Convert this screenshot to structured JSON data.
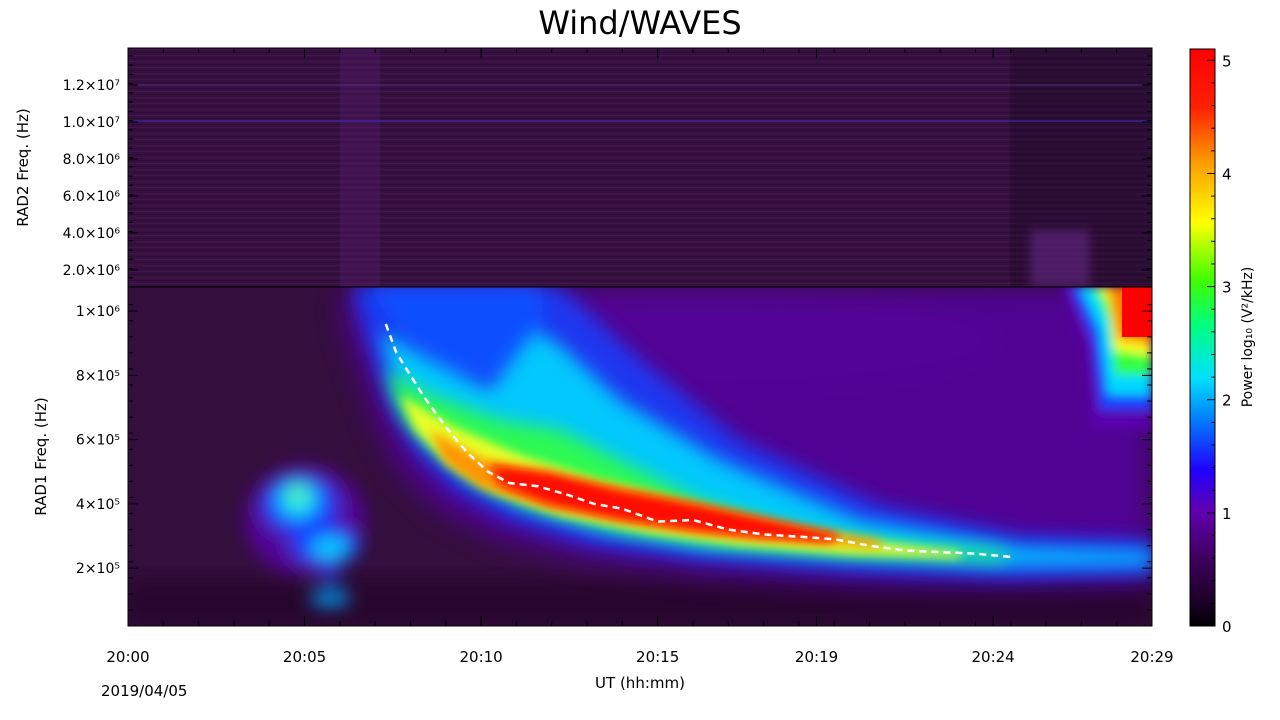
{
  "title": "Wind/WAVES",
  "date": "2019/04/05",
  "chart_data": {
    "type": "heatmap",
    "title": "Wind/WAVES",
    "xlabel": "UT (hh:mm)",
    "x_ticks": [
      "20:00",
      "20:05",
      "20:10",
      "20:15",
      "20:19",
      "20:24",
      "20:29"
    ],
    "panels": [
      {
        "name": "RAD2",
        "ylabel": "RAD2 Freq. (Hz)",
        "ylim": [
          1075000,
          14000000
        ],
        "y_ticks": [
          {
            "label": "2.0×10⁶",
            "value": 2000000
          },
          {
            "label": "4.0×10⁶",
            "value": 4000000
          },
          {
            "label": "6.0×10⁶",
            "value": 6000000
          },
          {
            "label": "8.0×10⁶",
            "value": 8000000
          },
          {
            "label": "1.0×10⁷",
            "value": 10000000
          },
          {
            "label": "1.2×10⁷",
            "value": 12000000
          }
        ]
      },
      {
        "name": "RAD1",
        "ylabel": "RAD1 Freq. (Hz)",
        "ylim": [
          20000,
          1075000
        ],
        "y_ticks": [
          {
            "label": "2×10⁵",
            "value": 200000
          },
          {
            "label": "4×10⁵",
            "value": 400000
          },
          {
            "label": "6×10⁵",
            "value": 600000
          },
          {
            "label": "8×10⁵",
            "value": 800000
          },
          {
            "label": "1×10⁶",
            "value": 1000000
          }
        ]
      }
    ],
    "colorbar": {
      "label": "Power log₁₀ (V²/kHz)",
      "range": [
        0,
        5.1
      ],
      "ticks": [
        "0",
        "1",
        "2",
        "3",
        "4",
        "5"
      ]
    },
    "trace": {
      "style": "dashed white",
      "x_minutes": [
        7.3,
        7.6,
        8.0,
        8.4,
        9.0,
        9.6,
        10.2,
        10.8,
        11.6,
        12.4,
        13.2,
        14.0,
        15.0,
        16.0,
        17.0,
        18.0,
        19.0,
        20.0,
        21.0,
        22.0,
        23.0,
        24.0,
        25.0
      ],
      "freq_hz": [
        960000,
        870000,
        800000,
        730000,
        640000,
        560000,
        500000,
        465000,
        455000,
        430000,
        400000,
        385000,
        345000,
        350000,
        320000,
        305000,
        298000,
        290000,
        270000,
        255000,
        250000,
        245000,
        235000
      ]
    }
  }
}
